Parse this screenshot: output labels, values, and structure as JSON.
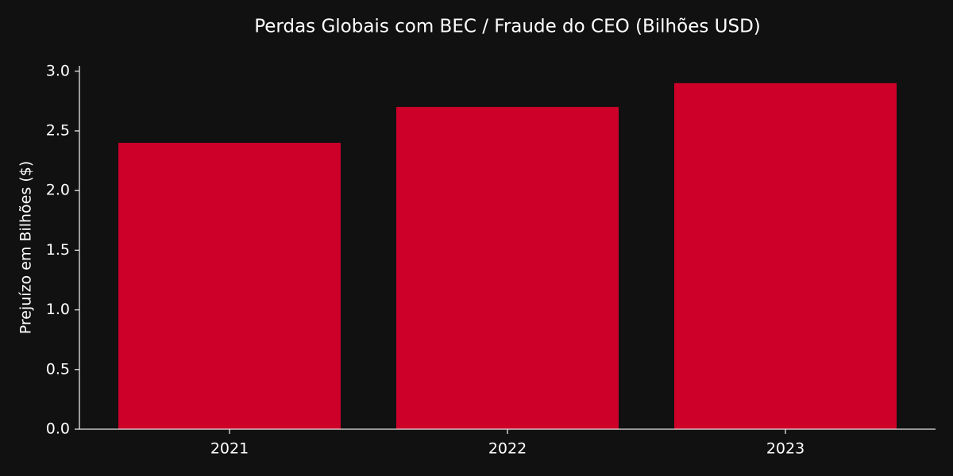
{
  "chart_data": {
    "type": "bar",
    "title": "Perdas Globais com BEC / Fraude do CEO (Bilhões USD)",
    "ylabel": "Prejuízo em Bilhões ($)",
    "categories": [
      "2021",
      "2022",
      "2023"
    ],
    "values": [
      2.4,
      2.7,
      2.9
    ],
    "color": "#cc0029",
    "ylim": [
      0,
      3.045
    ],
    "yticks": [
      {
        "value": 0,
        "label": "0.0"
      },
      0.5,
      {
        "value": 1,
        "label": "1.0"
      },
      1.5,
      {
        "value": 2,
        "label": "2.0"
      },
      2.5,
      {
        "value": 3,
        "label": "3.0"
      }
    ],
    "grid": false
  }
}
